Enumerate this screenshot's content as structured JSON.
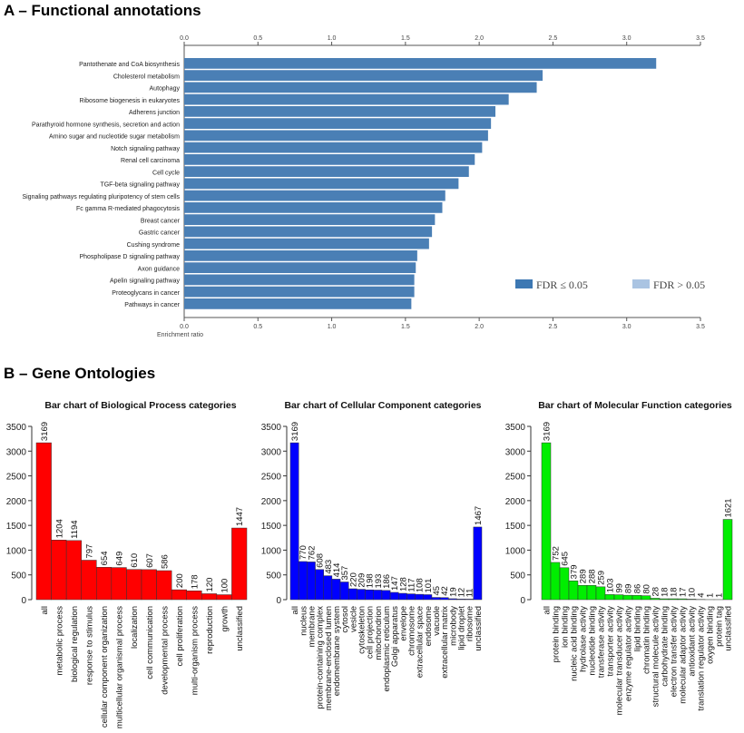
{
  "panel_a": {
    "heading": "A – Functional annotations"
  },
  "panel_b": {
    "heading": "B – Gene Ontologies"
  },
  "chart_data": [
    {
      "type": "bar",
      "orientation": "horizontal",
      "xlabel": "Enrichment ratio",
      "xlim": [
        0,
        3.5
      ],
      "xticks": [
        "0.0",
        "0.5",
        "1.0",
        "1.5",
        "2.0",
        "2.5",
        "3.0",
        "3.5"
      ],
      "color": "#4a7fb5",
      "legend": [
        {
          "label": "FDR ≤ 0.05",
          "color": "#3d78b3"
        },
        {
          "label": "FDR > 0.05",
          "color": "#aac4e2"
        }
      ],
      "legend_position": "bottom-right",
      "categories": [
        "Pantothenate and CoA biosynthesis",
        "Cholesterol metabolism",
        "Autophagy",
        "Ribosome biogenesis in eukaryotes",
        "Adherens junction",
        "Parathyroid hormone synthesis, secretion and action",
        "Amino sugar and nucleotide sugar metabolism",
        "Notch signaling pathway",
        "Renal cell carcinoma",
        "Cell cycle",
        "TGF-beta signaling pathway",
        "Signaling pathways regulating pluripotency of stem cells",
        "Fc gamma R-mediated phagocytosis",
        "Breast cancer",
        "Gastric cancer",
        "Cushing syndrome",
        "Phospholipase D signaling pathway",
        "Axon guidance",
        "Apelin signaling pathway",
        "Proteoglycans in cancer",
        "Pathways in cancer"
      ],
      "values": [
        3.2,
        2.43,
        2.39,
        2.2,
        2.11,
        2.08,
        2.06,
        2.02,
        1.97,
        1.93,
        1.86,
        1.77,
        1.75,
        1.7,
        1.68,
        1.66,
        1.58,
        1.57,
        1.56,
        1.56,
        1.54
      ]
    },
    {
      "type": "bar",
      "title": "Bar chart of Biological Process categories",
      "ylim": [
        0,
        3500
      ],
      "yticks": [
        "0",
        "500",
        "1000",
        "1500",
        "2000",
        "2500",
        "3000",
        "3500"
      ],
      "color": "#ff0000",
      "categories": [
        "all",
        "metabolic process",
        "biological regulation",
        "response to stimulus",
        "cellular component organization",
        "multicellular organismal process",
        "localization",
        "cell communication",
        "developmental process",
        "cell proliferation",
        "multi-organism process",
        "reproduction",
        "growth",
        "unclassified"
      ],
      "values": [
        3169,
        1204,
        1194,
        797,
        654,
        649,
        610,
        607,
        586,
        200,
        178,
        120,
        100,
        1447
      ]
    },
    {
      "type": "bar",
      "title": "Bar chart of Cellular Component categories",
      "ylim": [
        0,
        3500
      ],
      "yticks": [
        "0",
        "500",
        "1000",
        "1500",
        "2000",
        "2500",
        "3000",
        "3500"
      ],
      "color": "#0000ff",
      "categories": [
        "all",
        "nucleus",
        "membrane",
        "protein-containing complex",
        "membrane-enclosed lumen",
        "endomembrane system",
        "cytosol",
        "vesicle",
        "cytoskeleton",
        "cell projection",
        "mitochondrion",
        "endoplasmic reticulum",
        "Golgi apparatus",
        "envelope",
        "chromosome",
        "extracellular space",
        "endosome",
        "vacuole",
        "extracellular matrix",
        "microbody",
        "lipid droplet",
        "ribosome",
        "unclassified"
      ],
      "values": [
        3169,
        770,
        762,
        608,
        483,
        414,
        357,
        220,
        209,
        198,
        193,
        186,
        147,
        128,
        117,
        108,
        101,
        45,
        42,
        19,
        12,
        11,
        1467
      ]
    },
    {
      "type": "bar",
      "title": "Bar chart of Molecular Function categories",
      "ylim": [
        0,
        3500
      ],
      "yticks": [
        "0",
        "500",
        "1000",
        "1500",
        "2000",
        "2500",
        "3000",
        "3500"
      ],
      "color": "#00ee00",
      "categories": [
        "all",
        "protein binding",
        "ion binding",
        "nucleic acid binding",
        "hydrolase activity",
        "nucleotide binding",
        "transferase activity",
        "transporter activity",
        "molecular transducer activity",
        "enzyme regulator activity",
        "lipid binding",
        "chromatin binding",
        "structural molecule activity",
        "carbohydrate binding",
        "electron transfer activity",
        "molecular adaptor activity",
        "antioxidant activity",
        "translation regulator activity",
        "oxygen binding",
        "protein tag",
        "unclassified"
      ],
      "values": [
        3169,
        752,
        645,
        379,
        289,
        288,
        259,
        103,
        99,
        89,
        86,
        80,
        28,
        18,
        18,
        17,
        10,
        4,
        1,
        1,
        1621
      ]
    }
  ]
}
